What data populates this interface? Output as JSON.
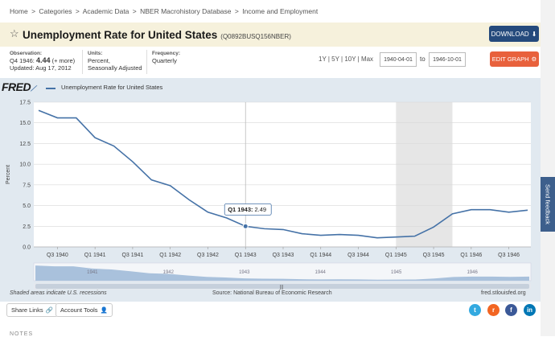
{
  "breadcrumb": [
    "Home",
    ">",
    "Categories",
    ">",
    "Academic Data",
    ">",
    "NBER Macrohistory Database",
    ">",
    "Income and Employment"
  ],
  "title": "Unemployment Rate for United States",
  "series_id": "(Q0892BUSQ156NBER)",
  "download_label": "DOWNLOAD",
  "observation": {
    "label": "Observation:",
    "period": "Q4 1946:",
    "value": "4.44",
    "more": "(+ more)",
    "updated": "Updated: Aug 17, 2012"
  },
  "units": {
    "label": "Units:",
    "line1": "Percent,",
    "line2": "Seasonally Adjusted"
  },
  "frequency": {
    "label": "Frequency:",
    "value": "Quarterly"
  },
  "ranges": "1Y | 5Y | 10Y | Max",
  "date_from": "1940-04-01",
  "to_label": "to",
  "date_to": "1946-10-01",
  "edit_label": "EDIT GRAPH",
  "legend_series": "Unemployment Rate for United States",
  "fred_logo": "FRED",
  "tooltip": {
    "label": "Q1 1943:",
    "value": "2.49"
  },
  "shaded_note": "Shaded areas indicate U.S. recessions",
  "source": "Source: National Bureau of Economic Research",
  "site": "fred.stlouisfed.org",
  "share_links": "Share Links",
  "account_tools": "Account Tools",
  "notes": "NOTES",
  "feedback": "Send feedback",
  "nav_years": [
    "1941",
    "1942",
    "1943",
    "1944",
    "1945",
    "1946"
  ],
  "colors": {
    "line": "#4572a7",
    "recession": "#e6e6e6",
    "download": "#254a7c",
    "edit": "#e8613c"
  },
  "chart_data": {
    "type": "line",
    "ylabel": "Percent",
    "ylim": [
      0,
      17.5
    ],
    "yticks": [
      0.0,
      2.5,
      5.0,
      7.5,
      10.0,
      12.5,
      15.0,
      17.5
    ],
    "x_tick_labels": [
      "Q3 1940",
      "Q1 1941",
      "Q3 1941",
      "Q1 1942",
      "Q3 1942",
      "Q1 1943",
      "Q3 1943",
      "Q1 1944",
      "Q3 1944",
      "Q1 1945",
      "Q3 1945",
      "Q1 1946",
      "Q3 1946"
    ],
    "recession": {
      "start": "Q1 1945",
      "end": "Q4 1945"
    },
    "series": [
      {
        "name": "Unemployment Rate for United States",
        "x": [
          "Q2 1940",
          "Q3 1940",
          "Q4 1940",
          "Q1 1941",
          "Q2 1941",
          "Q3 1941",
          "Q4 1941",
          "Q1 1942",
          "Q2 1942",
          "Q3 1942",
          "Q4 1942",
          "Q1 1943",
          "Q2 1943",
          "Q3 1943",
          "Q4 1943",
          "Q1 1944",
          "Q2 1944",
          "Q3 1944",
          "Q4 1944",
          "Q1 1945",
          "Q2 1945",
          "Q3 1945",
          "Q4 1945",
          "Q1 1946",
          "Q2 1946",
          "Q3 1946",
          "Q4 1946"
        ],
        "values": [
          16.5,
          15.6,
          15.6,
          13.2,
          12.2,
          10.3,
          8.1,
          7.4,
          5.7,
          4.2,
          3.5,
          2.49,
          2.2,
          2.1,
          1.6,
          1.4,
          1.5,
          1.4,
          1.1,
          1.2,
          1.3,
          2.4,
          4.0,
          4.5,
          4.5,
          4.2,
          4.44
        ]
      }
    ]
  }
}
